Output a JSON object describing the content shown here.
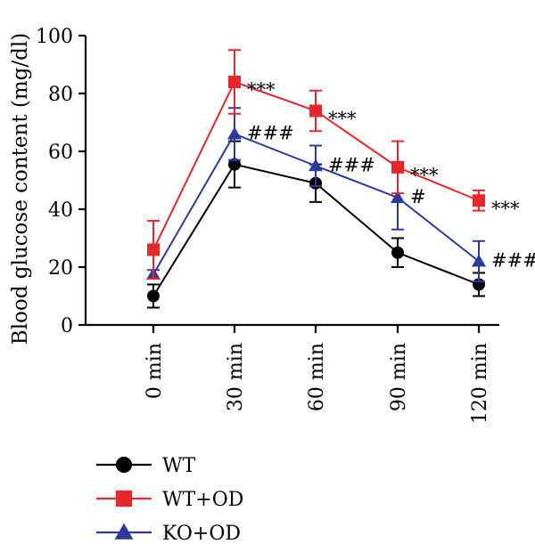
{
  "chart_data": {
    "type": "line",
    "ylabel": "Blood glucose content (mg/dl)",
    "xlabel": "",
    "categories": [
      "0 min",
      "30 min",
      "60 min",
      "90 min",
      "120 min"
    ],
    "ylim": [
      0,
      100
    ],
    "yticks": [
      "0",
      "20",
      "40",
      "60",
      "80",
      "100"
    ],
    "grid": false,
    "legend_position": "bottom-left",
    "series": [
      {
        "name": "WT",
        "color": "#000000",
        "marker": "circle",
        "values": [
          10,
          55.5,
          49,
          25,
          14
        ],
        "errors": [
          4,
          8,
          6.5,
          5,
          4
        ],
        "annotations": [
          "",
          "",
          "",
          "",
          ""
        ]
      },
      {
        "name": "WT+OD",
        "color": "#e8272a",
        "marker": "square",
        "values": [
          26,
          84,
          74,
          54.5,
          43
        ],
        "errors": [
          10,
          11,
          7,
          9,
          3.5
        ],
        "annotations": [
          "",
          "***",
          "***",
          "***",
          "***"
        ]
      },
      {
        "name": "KO+OD",
        "color": "#2b3a9c",
        "marker": "triangle",
        "values": [
          17.5,
          66,
          55,
          44,
          22
        ],
        "errors": [
          1.5,
          9,
          7,
          11,
          7
        ],
        "annotations": [
          "",
          "###",
          "###",
          "#",
          "###"
        ]
      }
    ]
  }
}
